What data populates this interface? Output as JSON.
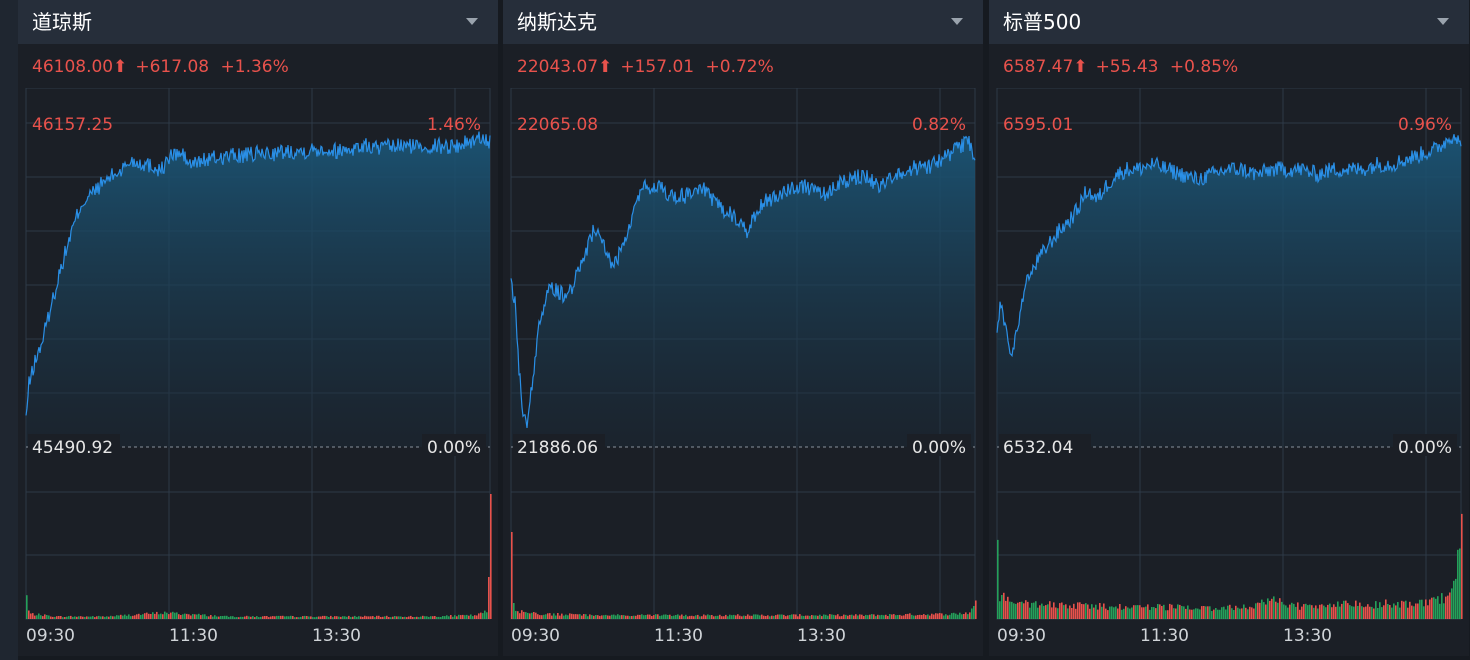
{
  "colors": {
    "up": "#e8524c",
    "down": "#25a05a",
    "line": "#2a8fe6",
    "grid": "#2e3a47",
    "text": "#e6e6e6"
  },
  "panels": [
    {
      "title": "道琼斯",
      "quote": {
        "price": "46108.00",
        "arrow": "⬆",
        "change": "+617.08",
        "percent": "+1.36%"
      },
      "chart_data": {
        "type": "area",
        "xticks": [
          "09:30",
          "11:30",
          "13:30"
        ],
        "ymax_label": "46157.25",
        "ymax_pct": "1.46%",
        "ybase_label": "45490.92",
        "ybase_pct": "0.00%",
        "ylim": [
          45490.92,
          46157.25
        ],
        "price_series": [
          [
            0,
            45550
          ],
          [
            3,
            45620
          ],
          [
            8,
            45660
          ],
          [
            15,
            45700
          ],
          [
            25,
            45780
          ],
          [
            35,
            45860
          ],
          [
            45,
            45930
          ],
          [
            55,
            45990
          ],
          [
            65,
            46010
          ],
          [
            80,
            46040
          ],
          [
            95,
            46060
          ],
          [
            105,
            46080
          ],
          [
            115,
            46075
          ],
          [
            125,
            46070
          ],
          [
            135,
            46060
          ],
          [
            145,
            46090
          ],
          [
            155,
            46095
          ],
          [
            165,
            46070
          ],
          [
            175,
            46080
          ],
          [
            190,
            46085
          ],
          [
            205,
            46090
          ],
          [
            220,
            46090
          ],
          [
            235,
            46095
          ],
          [
            250,
            46095
          ],
          [
            265,
            46100
          ],
          [
            280,
            46100
          ],
          [
            295,
            46105
          ],
          [
            310,
            46100
          ],
          [
            325,
            46105
          ],
          [
            340,
            46110
          ],
          [
            355,
            46105
          ],
          [
            370,
            46110
          ],
          [
            385,
            46110
          ],
          [
            400,
            46110
          ],
          [
            415,
            46110
          ],
          [
            430,
            46110
          ],
          [
            445,
            46120
          ],
          [
            458,
            46130
          ],
          [
            464,
            46115
          ]
        ],
        "volume_series": [
          [
            0,
            0.18
          ],
          [
            1,
            0.08
          ],
          [
            4,
            0.04
          ],
          [
            30,
            0.02
          ],
          [
            80,
            0.02
          ],
          [
            138,
            0.05
          ],
          [
            200,
            0.02
          ],
          [
            300,
            0.02
          ],
          [
            400,
            0.02
          ],
          [
            450,
            0.03
          ],
          [
            460,
            0.06
          ],
          [
            463,
            0.55
          ],
          [
            464,
            0.85
          ]
        ]
      }
    },
    {
      "title": "纳斯达克",
      "quote": {
        "price": "22043.07",
        "arrow": "⬆",
        "change": "+157.01",
        "percent": "+0.72%"
      },
      "chart_data": {
        "type": "area",
        "xticks": [
          "09:30",
          "11:30",
          "13:30"
        ],
        "ymax_label": "22065.08",
        "ymax_pct": "0.82%",
        "ybase_label": "21886.06",
        "ybase_pct": "0.00%",
        "ylim": [
          21886.06,
          22065.08
        ],
        "price_series": [
          [
            0,
            21975
          ],
          [
            4,
            21965
          ],
          [
            8,
            21930
          ],
          [
            12,
            21905
          ],
          [
            16,
            21900
          ],
          [
            22,
            21925
          ],
          [
            30,
            21960
          ],
          [
            40,
            21975
          ],
          [
            52,
            21970
          ],
          [
            62,
            21975
          ],
          [
            72,
            21990
          ],
          [
            82,
            22005
          ],
          [
            92,
            22000
          ],
          [
            102,
            21985
          ],
          [
            115,
            22000
          ],
          [
            130,
            22030
          ],
          [
            145,
            22030
          ],
          [
            160,
            22025
          ],
          [
            175,
            22025
          ],
          [
            190,
            22030
          ],
          [
            205,
            22020
          ],
          [
            220,
            22015
          ],
          [
            235,
            22005
          ],
          [
            250,
            22020
          ],
          [
            265,
            22025
          ],
          [
            280,
            22030
          ],
          [
            295,
            22030
          ],
          [
            310,
            22025
          ],
          [
            325,
            22030
          ],
          [
            340,
            22035
          ],
          [
            355,
            22035
          ],
          [
            370,
            22030
          ],
          [
            385,
            22035
          ],
          [
            400,
            22040
          ],
          [
            415,
            22040
          ],
          [
            430,
            22045
          ],
          [
            445,
            22050
          ],
          [
            458,
            22055
          ],
          [
            464,
            22045
          ]
        ],
        "volume_series": [
          [
            0,
            0.92
          ],
          [
            1,
            0.2
          ],
          [
            4,
            0.06
          ],
          [
            30,
            0.04
          ],
          [
            80,
            0.03
          ],
          [
            150,
            0.03
          ],
          [
            250,
            0.03
          ],
          [
            350,
            0.03
          ],
          [
            440,
            0.04
          ],
          [
            458,
            0.05
          ],
          [
            462,
            0.12
          ],
          [
            464,
            0.14
          ]
        ]
      }
    },
    {
      "title": "标普500",
      "quote": {
        "price": "6587.47",
        "arrow": "⬆",
        "change": "+55.43",
        "percent": "+0.85%"
      },
      "chart_data": {
        "type": "area",
        "xticks": [
          "09:30",
          "11:30",
          "13:30"
        ],
        "ymax_label": "6595.01",
        "ymax_pct": "0.96%",
        "ybase_label": "6532.04",
        "ybase_pct": "0.00%",
        "ylim": [
          6532.04,
          6595.01
        ],
        "price_series": [
          [
            0,
            6555
          ],
          [
            4,
            6560
          ],
          [
            10,
            6553
          ],
          [
            15,
            6550
          ],
          [
            22,
            6557
          ],
          [
            30,
            6564
          ],
          [
            40,
            6568
          ],
          [
            50,
            6571
          ],
          [
            62,
            6574
          ],
          [
            72,
            6576
          ],
          [
            80,
            6578
          ],
          [
            90,
            6582
          ],
          [
            100,
            6580
          ],
          [
            110,
            6583
          ],
          [
            120,
            6585
          ],
          [
            130,
            6586
          ],
          [
            140,
            6586
          ],
          [
            155,
            6587
          ],
          [
            170,
            6586
          ],
          [
            185,
            6585
          ],
          [
            200,
            6584
          ],
          [
            215,
            6585
          ],
          [
            230,
            6586
          ],
          [
            245,
            6586
          ],
          [
            260,
            6585
          ],
          [
            275,
            6586
          ],
          [
            290,
            6586
          ],
          [
            305,
            6586
          ],
          [
            320,
            6585
          ],
          [
            335,
            6586
          ],
          [
            350,
            6586
          ],
          [
            365,
            6586
          ],
          [
            380,
            6587
          ],
          [
            395,
            6587
          ],
          [
            410,
            6588
          ],
          [
            425,
            6589
          ],
          [
            440,
            6590
          ],
          [
            452,
            6592
          ],
          [
            458,
            6593
          ],
          [
            464,
            6590
          ]
        ],
        "volume_series": [
          [
            0,
            0.6
          ],
          [
            1,
            0.22
          ],
          [
            3,
            0.18
          ],
          [
            10,
            0.14
          ],
          [
            30,
            0.12
          ],
          [
            60,
            0.11
          ],
          [
            100,
            0.1
          ],
          [
            150,
            0.1
          ],
          [
            200,
            0.09
          ],
          [
            250,
            0.09
          ],
          [
            282,
            0.16
          ],
          [
            290,
            0.1
          ],
          [
            330,
            0.11
          ],
          [
            380,
            0.12
          ],
          [
            420,
            0.13
          ],
          [
            440,
            0.15
          ],
          [
            452,
            0.2
          ],
          [
            458,
            0.3
          ],
          [
            464,
            0.75
          ]
        ]
      }
    }
  ]
}
